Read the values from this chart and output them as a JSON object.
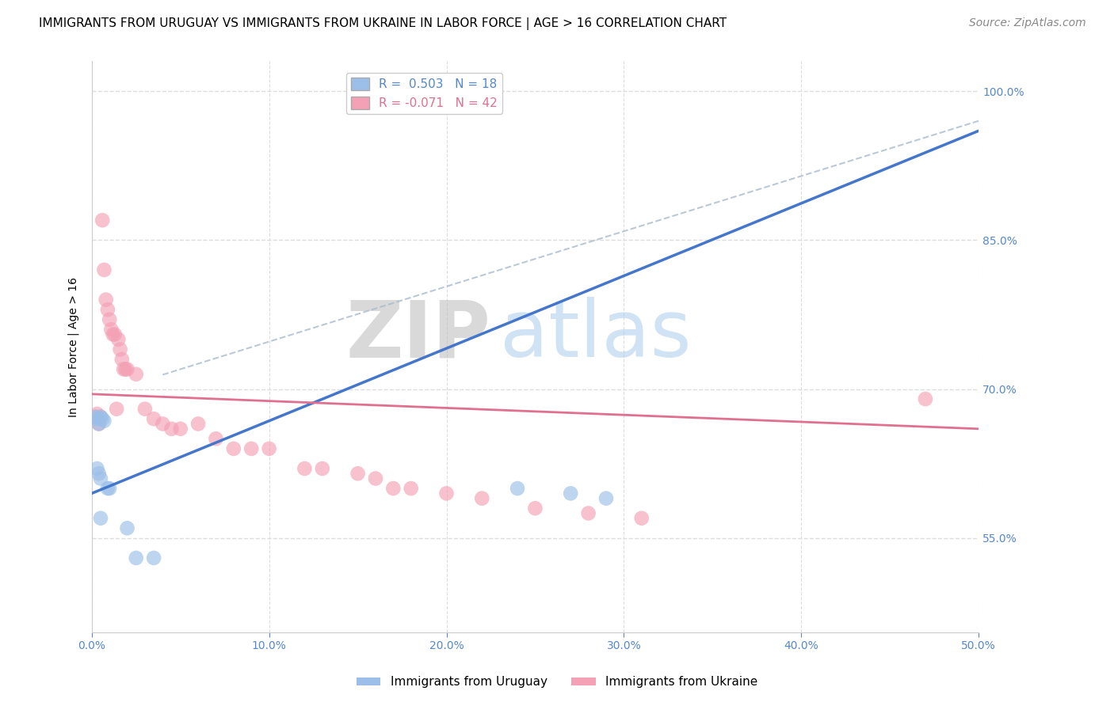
{
  "title": "IMMIGRANTS FROM URUGUAY VS IMMIGRANTS FROM UKRAINE IN LABOR FORCE | AGE > 16 CORRELATION CHART",
  "source": "Source: ZipAtlas.com",
  "ylabel": "In Labor Force | Age > 16",
  "xlabel": "",
  "watermark_zip": "ZIP",
  "watermark_atlas": "atlas",
  "xlim": [
    0.0,
    0.5
  ],
  "ylim": [
    0.455,
    1.03
  ],
  "xticks": [
    0.0,
    0.1,
    0.2,
    0.3,
    0.4,
    0.5
  ],
  "xticklabels": [
    "0.0%",
    "10.0%",
    "20.0%",
    "30.0%",
    "40.0%",
    "50.0%"
  ],
  "yticks": [
    0.55,
    0.7,
    0.85,
    1.0
  ],
  "yticklabels": [
    "55.0%",
    "70.0%",
    "85.0%",
    "100.0%"
  ],
  "uruguay_color": "#9BBFE8",
  "ukraine_color": "#F4A0B5",
  "uruguay_line_color": "#4477CC",
  "ukraine_line_color": "#E07090",
  "dashed_line_color": "#AABBCC",
  "R_uruguay": 0.503,
  "N_uruguay": 18,
  "R_ukraine": -0.071,
  "N_ukraine": 42,
  "legend_label_uruguay": "Immigrants from Uruguay",
  "legend_label_ukraine": "Immigrants from Ukraine",
  "uruguay_x": [
    0.002,
    0.003,
    0.004,
    0.005,
    0.006,
    0.007,
    0.003,
    0.004,
    0.005,
    0.009,
    0.01,
    0.02,
    0.025,
    0.035,
    0.005,
    0.24,
    0.27,
    0.29
  ],
  "uruguay_y": [
    0.672,
    0.67,
    0.665,
    0.672,
    0.67,
    0.668,
    0.62,
    0.615,
    0.61,
    0.6,
    0.6,
    0.56,
    0.53,
    0.53,
    0.57,
    0.6,
    0.595,
    0.59
  ],
  "ukraine_x": [
    0.002,
    0.003,
    0.004,
    0.005,
    0.006,
    0.007,
    0.008,
    0.009,
    0.01,
    0.011,
    0.012,
    0.013,
    0.014,
    0.015,
    0.016,
    0.017,
    0.018,
    0.019,
    0.02,
    0.025,
    0.03,
    0.035,
    0.04,
    0.045,
    0.05,
    0.06,
    0.07,
    0.08,
    0.09,
    0.1,
    0.12,
    0.13,
    0.15,
    0.16,
    0.17,
    0.18,
    0.2,
    0.22,
    0.25,
    0.28,
    0.31,
    0.47
  ],
  "ukraine_y": [
    0.672,
    0.675,
    0.665,
    0.672,
    0.87,
    0.82,
    0.79,
    0.78,
    0.77,
    0.76,
    0.755,
    0.755,
    0.68,
    0.75,
    0.74,
    0.73,
    0.72,
    0.72,
    0.72,
    0.715,
    0.68,
    0.67,
    0.665,
    0.66,
    0.66,
    0.665,
    0.65,
    0.64,
    0.64,
    0.64,
    0.62,
    0.62,
    0.615,
    0.61,
    0.6,
    0.6,
    0.595,
    0.59,
    0.58,
    0.575,
    0.57,
    0.69
  ],
  "background_color": "#FFFFFF",
  "grid_color": "#DDDDDD",
  "tick_color": "#5588CC",
  "title_fontsize": 11,
  "axis_label_fontsize": 10,
  "tick_fontsize": 10,
  "legend_fontsize": 11,
  "source_fontsize": 10
}
